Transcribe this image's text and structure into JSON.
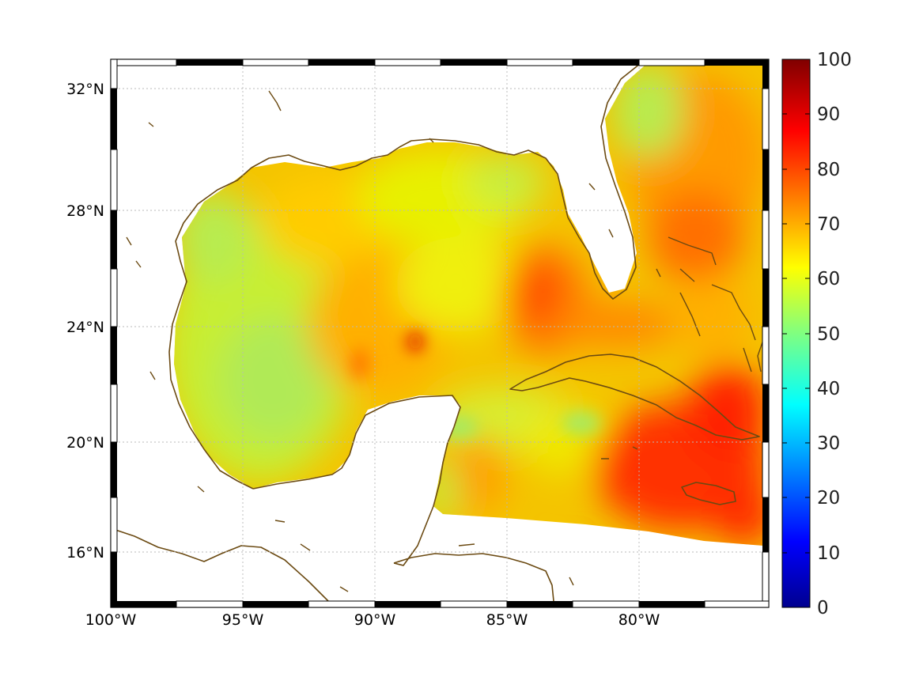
{
  "map": {
    "region": "Gulf of Mexico and western Caribbean",
    "lon_range": [
      -100,
      -75
    ],
    "lat_range": [
      14.2,
      33
    ],
    "x_ticks": [
      {
        "value": -100,
        "label": "100°W"
      },
      {
        "value": -95,
        "label": "95°W"
      },
      {
        "value": -90,
        "label": "90°W"
      },
      {
        "value": -85,
        "label": "85°W"
      },
      {
        "value": -80,
        "label": "80°W"
      }
    ],
    "y_ticks": [
      {
        "value": 32,
        "label": "32°N"
      },
      {
        "value": 28,
        "label": "28°N"
      },
      {
        "value": 24,
        "label": "24°N"
      },
      {
        "value": 20,
        "label": "20°N"
      },
      {
        "value": 16,
        "label": "16°N"
      }
    ],
    "grid": true,
    "coastline_color": "#6b4a12",
    "frame_style": "black-white alternating border"
  },
  "colorbar": {
    "colormap": "jet",
    "range": [
      0,
      100
    ],
    "ticks": [
      "100",
      "90",
      "80",
      "70",
      "60",
      "50",
      "40",
      "30",
      "20",
      "10",
      "0"
    ],
    "placement": "right"
  },
  "field": {
    "dominant_range": [
      55,
      90
    ],
    "western_gulf": 58,
    "eastern_gulf": 70,
    "florida_straits": 80,
    "caribbean_south_of_cuba": 88,
    "atlantic_east_of_florida": 75,
    "local_maximum_central_gulf": 85
  }
}
